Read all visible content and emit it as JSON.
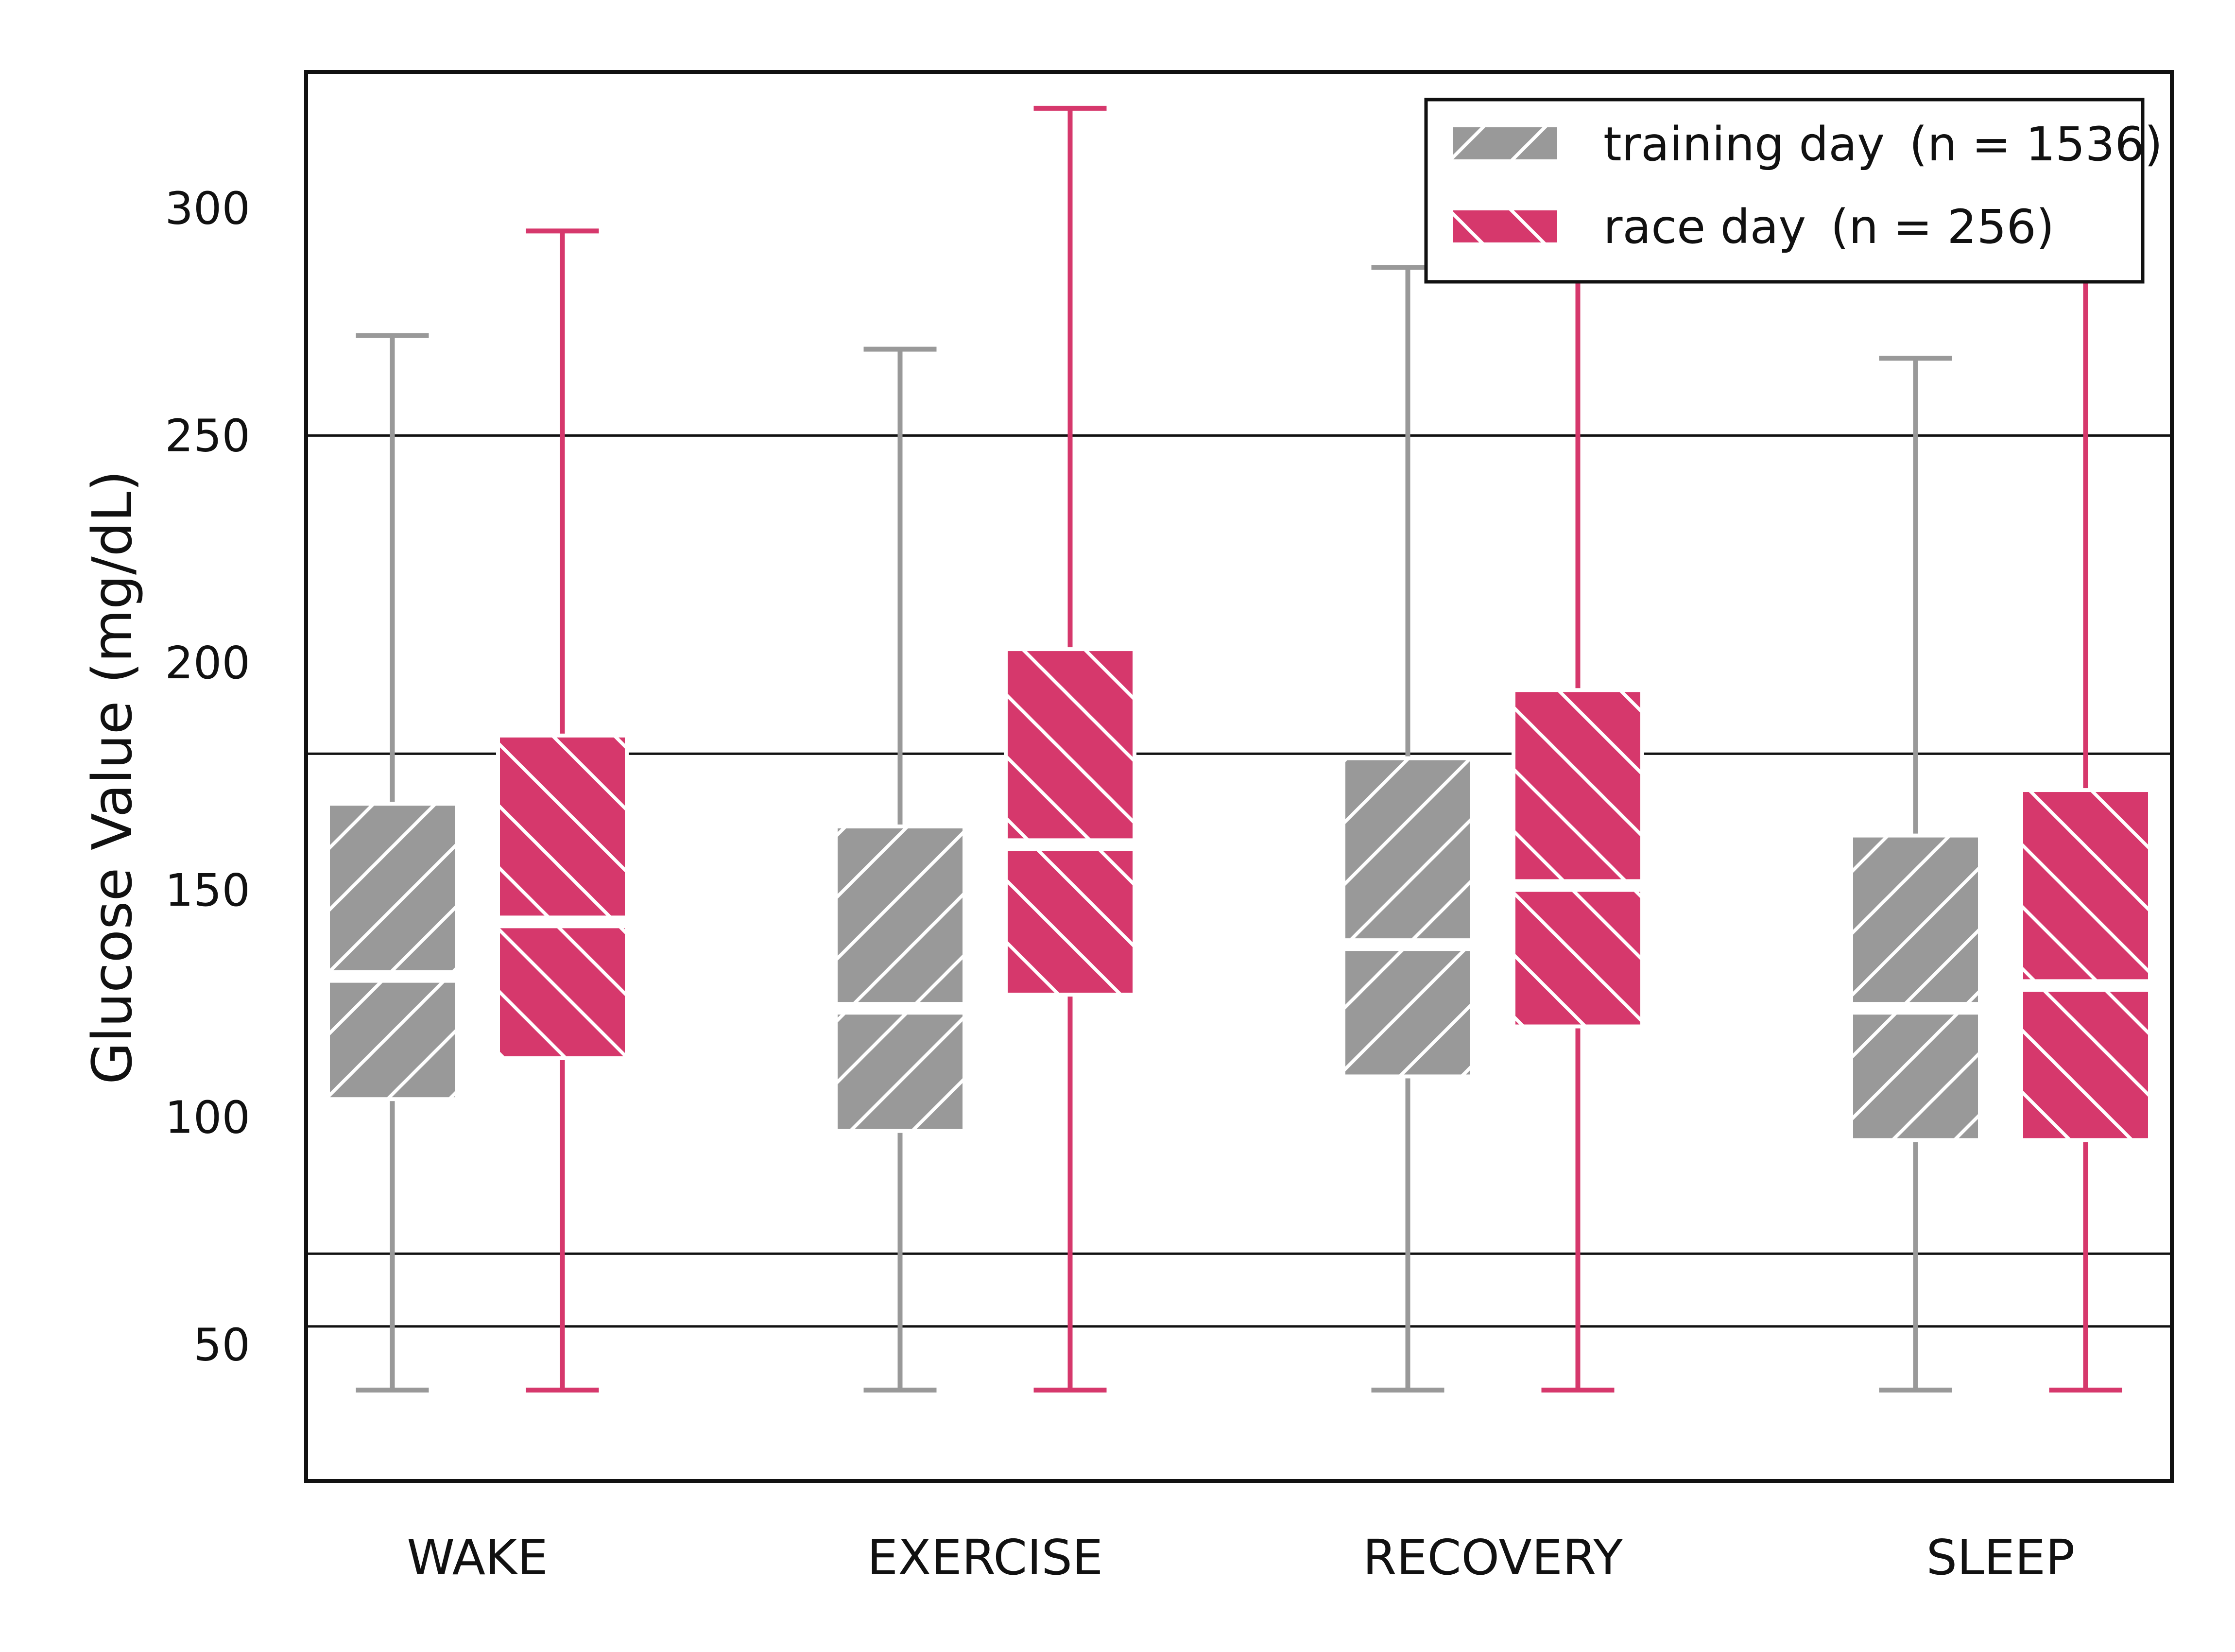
{
  "chart_data": {
    "type": "boxplot",
    "title": "",
    "xlabel": "",
    "ylabel": "Glucose Value (mg/dL)",
    "ylim": [
      20,
      330
    ],
    "yticks": [
      50,
      100,
      150,
      200,
      250,
      300
    ],
    "reference_lines": [
      54,
      70,
      180,
      250
    ],
    "grid": false,
    "legend_position": "top-right",
    "categories": [
      "WAKE",
      "EXERCISE",
      "RECOVERY",
      "SLEEP"
    ],
    "series": [
      {
        "name": "training day",
        "n_label": "(n = 1536)",
        "color": "#999999",
        "hatch": "forward",
        "boxes": [
          {
            "whisker_low": 40,
            "q1": 104,
            "median": 131,
            "q3": 169,
            "whisker_high": 272
          },
          {
            "whisker_low": 40,
            "q1": 97,
            "median": 124,
            "q3": 164,
            "whisker_high": 269
          },
          {
            "whisker_low": 40,
            "q1": 109,
            "median": 138,
            "q3": 179,
            "whisker_high": 287
          },
          {
            "whisker_low": 40,
            "q1": 95,
            "median": 124,
            "q3": 162,
            "whisker_high": 267
          }
        ]
      },
      {
        "name": "race day",
        "n_label": "(n = 256)",
        "color": "#d6386c",
        "hatch": "backward",
        "boxes": [
          {
            "whisker_low": 40,
            "q1": 113,
            "median": 143,
            "q3": 184,
            "whisker_high": 295
          },
          {
            "whisker_low": 40,
            "q1": 127,
            "median": 160,
            "q3": 203,
            "whisker_high": 322
          },
          {
            "whisker_low": 40,
            "q1": 120,
            "median": 151,
            "q3": 194,
            "whisker_high": 295
          },
          {
            "whisker_low": 40,
            "q1": 95,
            "median": 129,
            "q3": 172,
            "whisker_high": 295
          }
        ]
      }
    ]
  }
}
